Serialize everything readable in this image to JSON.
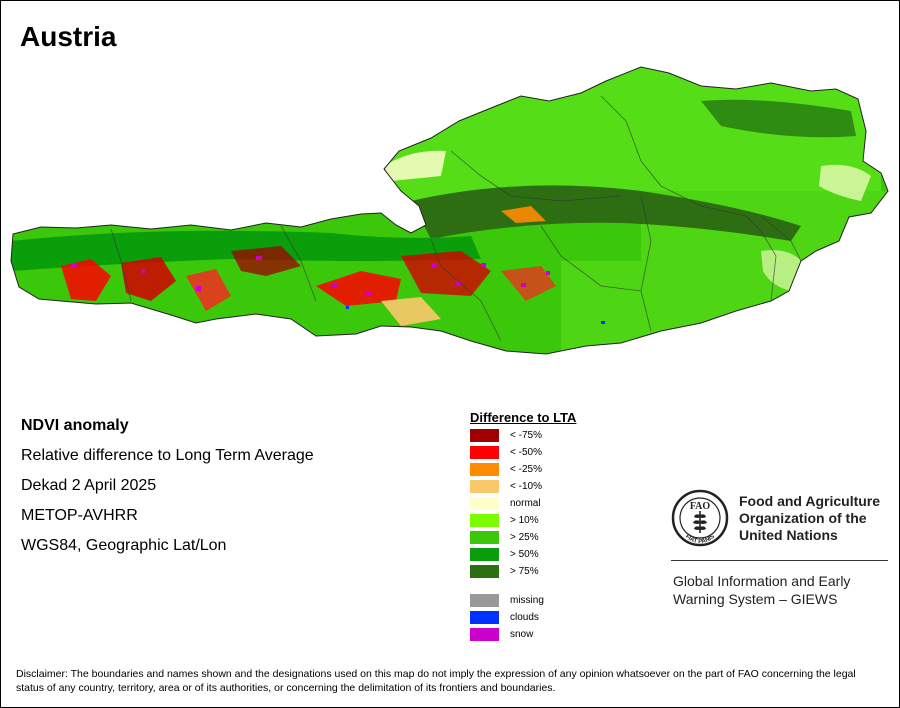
{
  "map": {
    "title": "Austria",
    "country": "Austria"
  },
  "info": {
    "product": "NDVI anomaly",
    "description": "Relative difference to Long Term Average",
    "period": "Dekad 2 April 2025",
    "sensor": "METOP-AVHRR",
    "projection": "WGS84, Geographic Lat/Lon"
  },
  "legend": {
    "title": "Difference to LTA",
    "classes": [
      {
        "label": "< -75%",
        "color": "#a00000"
      },
      {
        "label": "< -50%",
        "color": "#ff0000"
      },
      {
        "label": "< -25%",
        "color": "#ff8c00"
      },
      {
        "label": "< -10%",
        "color": "#f9c86a"
      },
      {
        "label": "normal",
        "color": "#ffffcc"
      },
      {
        "label": "> 10%",
        "color": "#7cfc00"
      },
      {
        "label": "> 25%",
        "color": "#3cc80a"
      },
      {
        "label": "> 50%",
        "color": "#0a9e0a"
      },
      {
        "label": "> 75%",
        "color": "#2e6e12"
      }
    ],
    "other": [
      {
        "label": "missing",
        "color": "#999999"
      },
      {
        "label": "clouds",
        "color": "#0033ff"
      },
      {
        "label": "snow",
        "color": "#cc00cc"
      }
    ]
  },
  "fao": {
    "emblem_letters": "FAO",
    "emblem_motto": "FIAT PANIS",
    "name_line1": "Food and Agriculture",
    "name_line2": "Organization of the",
    "name_line3": "United Nations",
    "giews_line1": "Global Information and Early",
    "giews_line2": "Warning System – GIEWS"
  },
  "disclaimer": "Disclaimer: The boundaries and names shown and the designations used on this map do not imply the expression of any opinion whatsoever on the part of FAO concerning the legal status of any country, territory, area or of its authorities, or concerning the delimitation of its frontiers and boundaries."
}
